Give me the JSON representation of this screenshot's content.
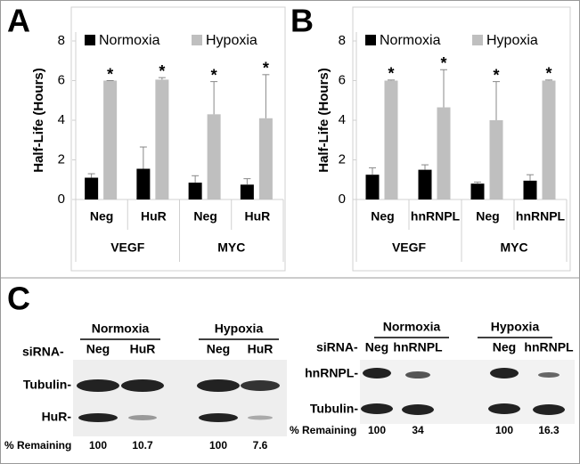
{
  "panels": {
    "a": "A",
    "b": "B",
    "c": "C"
  },
  "chart_data": [
    {
      "type": "bar",
      "ylabel": "Half-Life (Hours)",
      "categories": [
        "Neg",
        "HuR",
        "Neg",
        "HuR"
      ],
      "groups": [
        "VEGF",
        "MYC"
      ],
      "series": [
        {
          "name": "Normoxia",
          "color": "#000000",
          "values": [
            1.1,
            1.55,
            0.85,
            0.75
          ],
          "errors": [
            0.2,
            1.1,
            0.35,
            0.3
          ]
        },
        {
          "name": "Hypoxia",
          "color": "#bfbfbf",
          "values": [
            6.0,
            6.05,
            4.3,
            4.1
          ],
          "errors": [
            0.0,
            0.1,
            1.65,
            2.2
          ]
        }
      ],
      "significance": [
        "*",
        "*",
        "*",
        "*"
      ],
      "ylim": [
        0,
        8
      ],
      "yticks": [
        0,
        2,
        4,
        6,
        8
      ]
    },
    {
      "type": "bar",
      "ylabel": "Half-Life (Hours)",
      "categories": [
        "Neg",
        "hnRNPL",
        "Neg",
        "hnRNPL"
      ],
      "groups": [
        "VEGF",
        "MYC"
      ],
      "series": [
        {
          "name": "Normoxia",
          "color": "#000000",
          "values": [
            1.25,
            1.5,
            0.8,
            0.95
          ],
          "errors": [
            0.35,
            0.25,
            0.08,
            0.3
          ]
        },
        {
          "name": "Hypoxia",
          "color": "#bfbfbf",
          "values": [
            6.0,
            4.65,
            4.0,
            6.0
          ],
          "errors": [
            0.03,
            1.9,
            1.95,
            0.03
          ]
        }
      ],
      "significance": [
        "*",
        "*",
        "*",
        "*"
      ],
      "ylim": [
        0,
        8
      ],
      "yticks": [
        0,
        2,
        4,
        6,
        8
      ]
    }
  ],
  "blots": [
    {
      "conditions": [
        "Normoxia",
        "Hypoxia"
      ],
      "rna_label": "siRNA-",
      "lanes": [
        "Neg",
        "HuR",
        "Neg",
        "HuR"
      ],
      "rows": [
        "Tubulin-",
        "HuR-"
      ],
      "remaining_label": "% Remaining",
      "remaining": [
        100,
        10.7,
        100,
        7.6
      ]
    },
    {
      "conditions": [
        "Normoxia",
        "Hypoxia"
      ],
      "rna_label": "siRNA-",
      "lanes": [
        "Neg",
        "hnRNPL",
        "Neg",
        "hnRNPL"
      ],
      "rows": [
        "hnRNPL-",
        "Tubulin-"
      ],
      "remaining_label": "% Remaining",
      "remaining": [
        100,
        34,
        100,
        16.3
      ]
    }
  ]
}
